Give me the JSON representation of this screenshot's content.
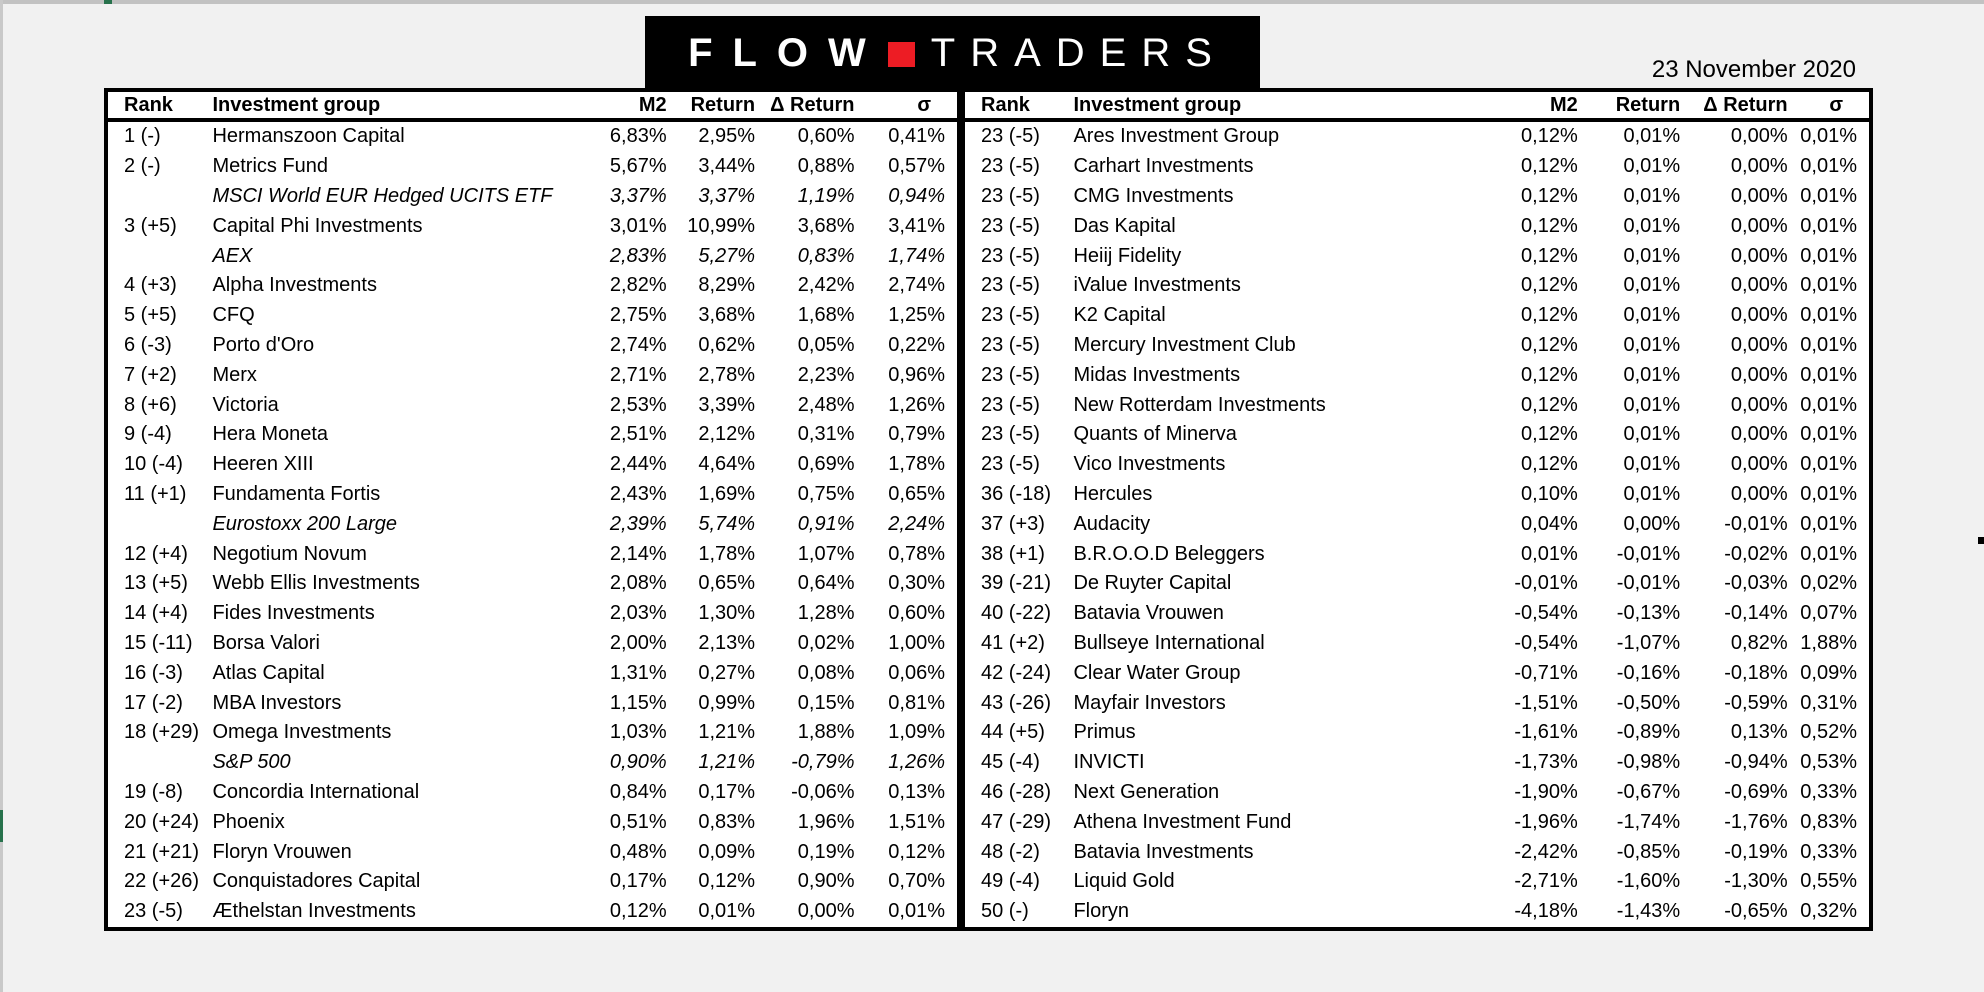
{
  "header": {
    "logo": {
      "flow": "FLOW",
      "traders": "TRADERS",
      "accent_color": "#ed1c24"
    },
    "date": "23 November 2020"
  },
  "colors": {
    "background": "#f1f1f1",
    "edge_gray": "#c9c9c9",
    "marker_green": "#27724c",
    "logo_red": "#ed1c24"
  },
  "columns": {
    "rank": "Rank",
    "name": "Investment group",
    "m2": "M2",
    "return": "Return",
    "delta_return": "Δ Return",
    "sigma": "σ"
  },
  "left_table": {
    "rows": [
      {
        "rank": "1 (-)",
        "name": "Hermanszoon Capital",
        "m2": "6,83%",
        "return": "2,95%",
        "delta_return": "0,60%",
        "sigma": "0,41%",
        "benchmark": false
      },
      {
        "rank": "2 (-)",
        "name": "Metrics Fund",
        "m2": "5,67%",
        "return": "3,44%",
        "delta_return": "0,88%",
        "sigma": "0,57%",
        "benchmark": false
      },
      {
        "rank": "",
        "name": "MSCI World EUR Hedged UCITS ETF",
        "m2": "3,37%",
        "return": "3,37%",
        "delta_return": "1,19%",
        "sigma": "0,94%",
        "benchmark": true
      },
      {
        "rank": "3 (+5)",
        "name": "Capital Phi Investments",
        "m2": "3,01%",
        "return": "10,99%",
        "delta_return": "3,68%",
        "sigma": "3,41%",
        "benchmark": false
      },
      {
        "rank": "",
        "name": "AEX",
        "m2": "2,83%",
        "return": "5,27%",
        "delta_return": "0,83%",
        "sigma": "1,74%",
        "benchmark": true
      },
      {
        "rank": "4 (+3)",
        "name": "Alpha Investments",
        "m2": "2,82%",
        "return": "8,29%",
        "delta_return": "2,42%",
        "sigma": "2,74%",
        "benchmark": false
      },
      {
        "rank": "5 (+5)",
        "name": "CFQ",
        "m2": "2,75%",
        "return": "3,68%",
        "delta_return": "1,68%",
        "sigma": "1,25%",
        "benchmark": false
      },
      {
        "rank": "6 (-3)",
        "name": "Porto d'Oro",
        "m2": "2,74%",
        "return": "0,62%",
        "delta_return": "0,05%",
        "sigma": "0,22%",
        "benchmark": false
      },
      {
        "rank": "7 (+2)",
        "name": "Merx",
        "m2": "2,71%",
        "return": "2,78%",
        "delta_return": "2,23%",
        "sigma": "0,96%",
        "benchmark": false
      },
      {
        "rank": "8 (+6)",
        "name": "Victoria",
        "m2": "2,53%",
        "return": "3,39%",
        "delta_return": "2,48%",
        "sigma": "1,26%",
        "benchmark": false
      },
      {
        "rank": "9 (-4)",
        "name": "Hera Moneta",
        "m2": "2,51%",
        "return": "2,12%",
        "delta_return": "0,31%",
        "sigma": "0,79%",
        "benchmark": false
      },
      {
        "rank": "10 (-4)",
        "name": "Heeren XIII",
        "m2": "2,44%",
        "return": "4,64%",
        "delta_return": "0,69%",
        "sigma": "1,78%",
        "benchmark": false
      },
      {
        "rank": "11 (+1)",
        "name": "Fundamenta Fortis",
        "m2": "2,43%",
        "return": "1,69%",
        "delta_return": "0,75%",
        "sigma": "0,65%",
        "benchmark": false
      },
      {
        "rank": "",
        "name": "Eurostoxx 200 Large",
        "m2": "2,39%",
        "return": "5,74%",
        "delta_return": "0,91%",
        "sigma": "2,24%",
        "benchmark": true
      },
      {
        "rank": "12 (+4)",
        "name": "Negotium Novum",
        "m2": "2,14%",
        "return": "1,78%",
        "delta_return": "1,07%",
        "sigma": "0,78%",
        "benchmark": false
      },
      {
        "rank": "13 (+5)",
        "name": "Webb Ellis Investments",
        "m2": "2,08%",
        "return": "0,65%",
        "delta_return": "0,64%",
        "sigma": "0,30%",
        "benchmark": false
      },
      {
        "rank": "14 (+4)",
        "name": "Fides Investments",
        "m2": "2,03%",
        "return": "1,30%",
        "delta_return": "1,28%",
        "sigma": "0,60%",
        "benchmark": false
      },
      {
        "rank": "15 (-11)",
        "name": "Borsa Valori",
        "m2": "2,00%",
        "return": "2,13%",
        "delta_return": "0,02%",
        "sigma": "1,00%",
        "benchmark": false
      },
      {
        "rank": "16 (-3)",
        "name": "Atlas Capital",
        "m2": "1,31%",
        "return": "0,27%",
        "delta_return": "0,08%",
        "sigma": "0,06%",
        "benchmark": false
      },
      {
        "rank": "17 (-2)",
        "name": "MBA Investors",
        "m2": "1,15%",
        "return": "0,99%",
        "delta_return": "0,15%",
        "sigma": "0,81%",
        "benchmark": false
      },
      {
        "rank": "18 (+29)",
        "name": "Omega Investments",
        "m2": "1,03%",
        "return": "1,21%",
        "delta_return": "1,88%",
        "sigma": "1,09%",
        "benchmark": false
      },
      {
        "rank": "",
        "name": "S&P 500",
        "m2": "0,90%",
        "return": "1,21%",
        "delta_return": "-0,79%",
        "sigma": "1,26%",
        "benchmark": true
      },
      {
        "rank": "19 (-8)",
        "name": "Concordia International",
        "m2": "0,84%",
        "return": "0,17%",
        "delta_return": "-0,06%",
        "sigma": "0,13%",
        "benchmark": false
      },
      {
        "rank": "20 (+24)",
        "name": "Phoenix",
        "m2": "0,51%",
        "return": "0,83%",
        "delta_return": "1,96%",
        "sigma": "1,51%",
        "benchmark": false
      },
      {
        "rank": "21 (+21)",
        "name": "Floryn Vrouwen",
        "m2": "0,48%",
        "return": "0,09%",
        "delta_return": "0,19%",
        "sigma": "0,12%",
        "benchmark": false
      },
      {
        "rank": "22 (+26)",
        "name": "Conquistadores Capital",
        "m2": "0,17%",
        "return": "0,12%",
        "delta_return": "0,90%",
        "sigma": "0,70%",
        "benchmark": false
      },
      {
        "rank": "23 (-5)",
        "name": "Æthelstan Investments",
        "m2": "0,12%",
        "return": "0,01%",
        "delta_return": "0,00%",
        "sigma": "0,01%",
        "benchmark": false
      }
    ]
  },
  "right_table": {
    "rows": [
      {
        "rank": "23 (-5)",
        "name": "Ares Investment Group",
        "m2": "0,12%",
        "return": "0,01%",
        "delta_return": "0,00%",
        "sigma": "0,01%",
        "benchmark": false
      },
      {
        "rank": "23 (-5)",
        "name": "Carhart Investments",
        "m2": "0,12%",
        "return": "0,01%",
        "delta_return": "0,00%",
        "sigma": "0,01%",
        "benchmark": false
      },
      {
        "rank": "23 (-5)",
        "name": "CMG Investments",
        "m2": "0,12%",
        "return": "0,01%",
        "delta_return": "0,00%",
        "sigma": "0,01%",
        "benchmark": false
      },
      {
        "rank": "23 (-5)",
        "name": "Das Kapital",
        "m2": "0,12%",
        "return": "0,01%",
        "delta_return": "0,00%",
        "sigma": "0,01%",
        "benchmark": false
      },
      {
        "rank": "23 (-5)",
        "name": "Heiij Fidelity",
        "m2": "0,12%",
        "return": "0,01%",
        "delta_return": "0,00%",
        "sigma": "0,01%",
        "benchmark": false
      },
      {
        "rank": "23 (-5)",
        "name": "iValue Investments",
        "m2": "0,12%",
        "return": "0,01%",
        "delta_return": "0,00%",
        "sigma": "0,01%",
        "benchmark": false
      },
      {
        "rank": "23 (-5)",
        "name": "K2 Capital",
        "m2": "0,12%",
        "return": "0,01%",
        "delta_return": "0,00%",
        "sigma": "0,01%",
        "benchmark": false
      },
      {
        "rank": "23 (-5)",
        "name": "Mercury Investment Club",
        "m2": "0,12%",
        "return": "0,01%",
        "delta_return": "0,00%",
        "sigma": "0,01%",
        "benchmark": false
      },
      {
        "rank": "23 (-5)",
        "name": "Midas Investments",
        "m2": "0,12%",
        "return": "0,01%",
        "delta_return": "0,00%",
        "sigma": "0,01%",
        "benchmark": false
      },
      {
        "rank": "23 (-5)",
        "name": "New Rotterdam Investments",
        "m2": "0,12%",
        "return": "0,01%",
        "delta_return": "0,00%",
        "sigma": "0,01%",
        "benchmark": false
      },
      {
        "rank": "23 (-5)",
        "name": "Quants of Minerva",
        "m2": "0,12%",
        "return": "0,01%",
        "delta_return": "0,00%",
        "sigma": "0,01%",
        "benchmark": false
      },
      {
        "rank": "23 (-5)",
        "name": "Vico Investments",
        "m2": "0,12%",
        "return": "0,01%",
        "delta_return": "0,00%",
        "sigma": "0,01%",
        "benchmark": false
      },
      {
        "rank": "36 (-18)",
        "name": "Hercules",
        "m2": "0,10%",
        "return": "0,01%",
        "delta_return": "0,00%",
        "sigma": "0,01%",
        "benchmark": false
      },
      {
        "rank": "37 (+3)",
        "name": "Audacity",
        "m2": "0,04%",
        "return": "0,00%",
        "delta_return": "-0,01%",
        "sigma": "0,01%",
        "benchmark": false
      },
      {
        "rank": "38 (+1)",
        "name": "B.R.O.O.D Beleggers",
        "m2": "0,01%",
        "return": "-0,01%",
        "delta_return": "-0,02%",
        "sigma": "0,01%",
        "benchmark": false
      },
      {
        "rank": "39 (-21)",
        "name": "De Ruyter Capital",
        "m2": "-0,01%",
        "return": "-0,01%",
        "delta_return": "-0,03%",
        "sigma": "0,02%",
        "benchmark": false
      },
      {
        "rank": "40 (-22)",
        "name": "Batavia Vrouwen",
        "m2": "-0,54%",
        "return": "-0,13%",
        "delta_return": "-0,14%",
        "sigma": "0,07%",
        "benchmark": false
      },
      {
        "rank": "41 (+2)",
        "name": "Bullseye International",
        "m2": "-0,54%",
        "return": "-1,07%",
        "delta_return": "0,82%",
        "sigma": "1,88%",
        "benchmark": false
      },
      {
        "rank": "42 (-24)",
        "name": "Clear Water Group",
        "m2": "-0,71%",
        "return": "-0,16%",
        "delta_return": "-0,18%",
        "sigma": "0,09%",
        "benchmark": false
      },
      {
        "rank": "43 (-26)",
        "name": "Mayfair Investors",
        "m2": "-1,51%",
        "return": "-0,50%",
        "delta_return": "-0,59%",
        "sigma": "0,31%",
        "benchmark": false
      },
      {
        "rank": "44 (+5)",
        "name": "Primus",
        "m2": "-1,61%",
        "return": "-0,89%",
        "delta_return": "0,13%",
        "sigma": "0,52%",
        "benchmark": false
      },
      {
        "rank": "45 (-4)",
        "name": "INVICTI",
        "m2": "-1,73%",
        "return": "-0,98%",
        "delta_return": "-0,94%",
        "sigma": "0,53%",
        "benchmark": false
      },
      {
        "rank": "46 (-28)",
        "name": "Next Generation",
        "m2": "-1,90%",
        "return": "-0,67%",
        "delta_return": "-0,69%",
        "sigma": "0,33%",
        "benchmark": false
      },
      {
        "rank": "47 (-29)",
        "name": "Athena Investment Fund",
        "m2": "-1,96%",
        "return": "-1,74%",
        "delta_return": "-1,76%",
        "sigma": "0,83%",
        "benchmark": false
      },
      {
        "rank": "48 (-2)",
        "name": "Batavia Investments",
        "m2": "-2,42%",
        "return": "-0,85%",
        "delta_return": "-0,19%",
        "sigma": "0,33%",
        "benchmark": false
      },
      {
        "rank": "49 (-4)",
        "name": "Liquid Gold",
        "m2": "-2,71%",
        "return": "-1,60%",
        "delta_return": "-1,30%",
        "sigma": "0,55%",
        "benchmark": false
      },
      {
        "rank": "50 (-)",
        "name": "Floryn",
        "m2": "-4,18%",
        "return": "-1,43%",
        "delta_return": "-0,65%",
        "sigma": "0,32%",
        "benchmark": false
      }
    ]
  }
}
